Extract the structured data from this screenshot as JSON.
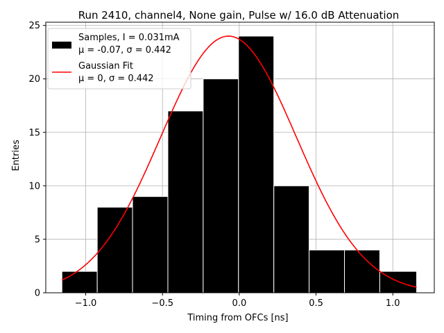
{
  "chart_data": {
    "type": "bar",
    "title": "Run 2410, channel4, None gain, Pulse w/ 16.0 dB Attenuation",
    "xlabel": "Timing from OFCs [ns]",
    "ylabel": "Entries",
    "xlim": [
      -1.26,
      1.27
    ],
    "ylim": [
      0,
      25.3
    ],
    "xticks": [
      -1.0,
      -0.5,
      0.0,
      0.5,
      1.0
    ],
    "xtick_labels": [
      "−1.0",
      "−0.5",
      "0.0",
      "0.5",
      "1.0"
    ],
    "yticks": [
      0,
      5,
      10,
      15,
      20,
      25
    ],
    "ytick_labels": [
      "0",
      "5",
      "10",
      "15",
      "20",
      "25"
    ],
    "grid": true,
    "legend_position": "top-left",
    "histogram": {
      "name": "Samples, I = 0.031mA",
      "stats": "μ = -0.07, σ = 0.442",
      "color": "#000000",
      "edgecolor": "#ffffff",
      "bin_edges": [
        -1.155,
        -0.925,
        -0.695,
        -0.465,
        -0.235,
        -0.005,
        0.225,
        0.455,
        0.685,
        0.915,
        1.155
      ],
      "counts": [
        2,
        8,
        9,
        17,
        20,
        24,
        10,
        4,
        4,
        2
      ]
    },
    "fit": {
      "name": "Gaussian Fit",
      "stats": "μ = 0, σ = 0.442",
      "color": "#ff0000",
      "mu": -0.07,
      "sigma": 0.442,
      "amplitude": 24.0,
      "x_range": [
        -1.155,
        1.155
      ]
    }
  }
}
